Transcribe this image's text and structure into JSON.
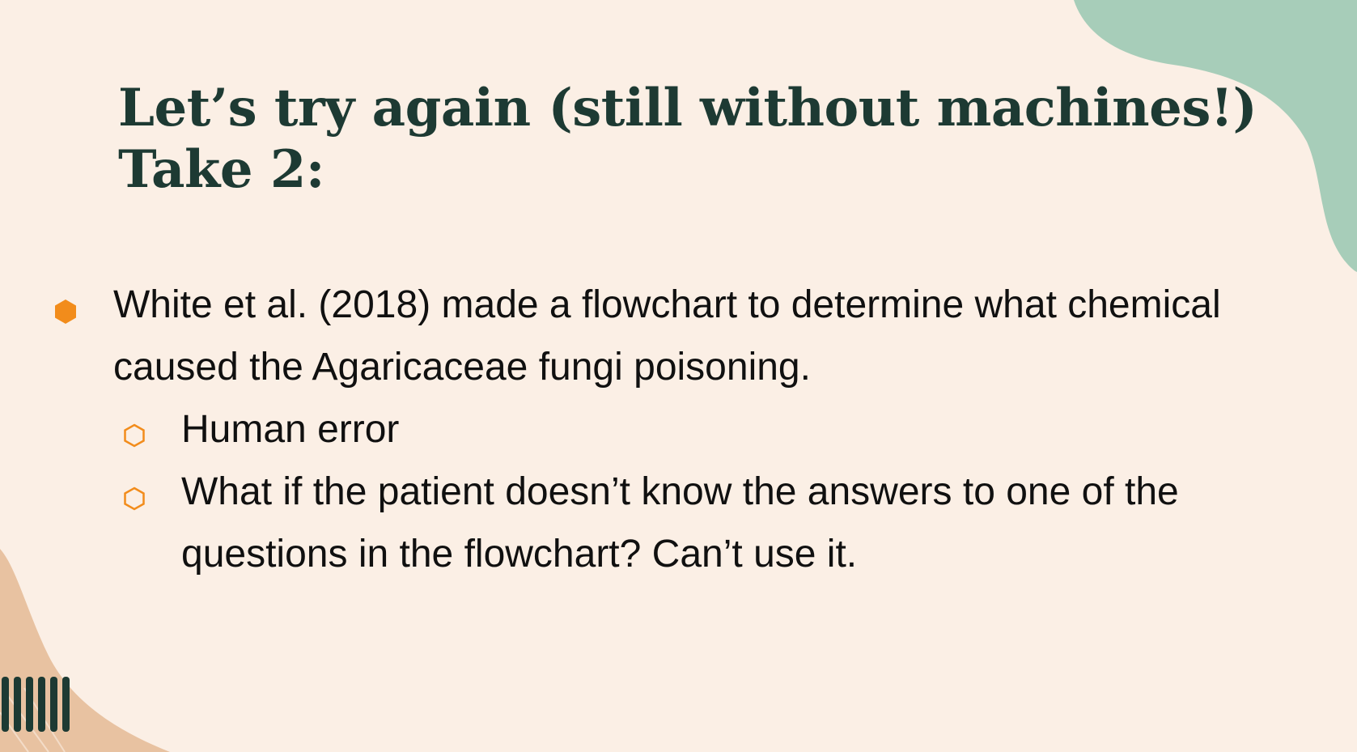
{
  "slide": {
    "title_lines": [
      "Let’s try again (still without machines!)",
      "Take 2:"
    ],
    "bullets": [
      {
        "level": 1,
        "text": "White et al. (2018) made a flowchart to determine what chemical caused the Agaricaceae fungi poisoning."
      },
      {
        "level": 2,
        "text": "Human error"
      },
      {
        "level": 2,
        "text": "What if the patient doesn’t know the answers to one of the questions in the flowchart? Can’t use it."
      }
    ],
    "colors": {
      "background": "#fbefe5",
      "title": "#1d3a33",
      "text": "#101010",
      "accent_orange": "#f28c1b",
      "blob_green": "#a7cdb9",
      "blob_peach": "#e8c2a1",
      "stripes": "#1d3a33"
    },
    "icons": {
      "level1_bullet": "filled-hexagon-icon",
      "level2_bullet": "outline-hexagon-icon",
      "decor_top_right": "green-blob",
      "decor_bottom_left": "peach-blob",
      "decor_stripes": "vertical-stripes"
    }
  }
}
